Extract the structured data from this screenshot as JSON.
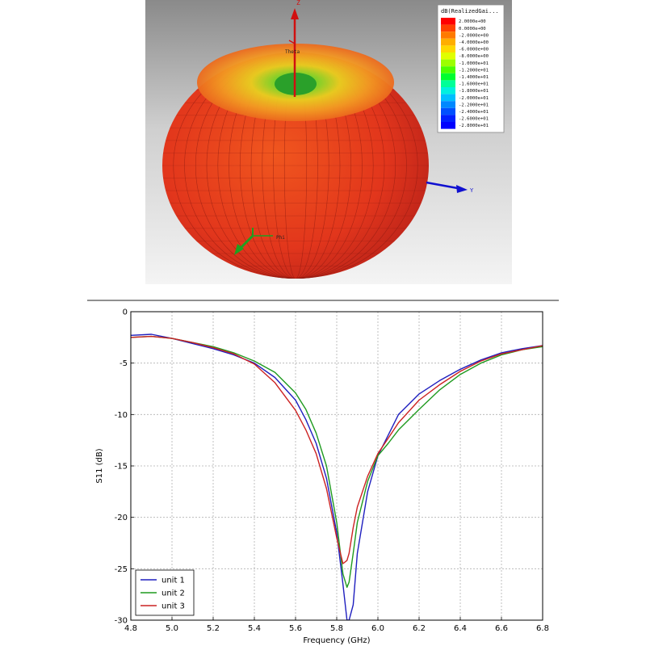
{
  "radiation_pattern": {
    "legend_title": "dB(RealizedGai...",
    "legend_values": [
      "2.0000e+00",
      "0.0000e+00",
      "-2.0000e+00",
      "-4.0000e+00",
      "-6.0000e+00",
      "-8.0000e+00",
      "-1.0000e+01",
      "-1.2000e+01",
      "-1.4000e+01",
      "-1.6000e+01",
      "-1.8000e+01",
      "-2.0000e+01",
      "-2.2000e+01",
      "-2.4000e+01",
      "-2.6000e+01",
      "-2.8000e+01"
    ],
    "legend_colors": [
      "#ff0000",
      "#ff4000",
      "#ff7a00",
      "#ffae00",
      "#ffd800",
      "#e0ff00",
      "#9cff00",
      "#4cff00",
      "#00ff30",
      "#00ff98",
      "#00f0e0",
      "#00c0ff",
      "#0088ff",
      "#0050ff",
      "#0020ff",
      "#0000ff"
    ],
    "axis_z": "Z",
    "axis_y": "Y",
    "axis_x": "",
    "label_theta": "Theta",
    "label_phi": "Phi",
    "body_color": "#e8341c",
    "top_color": "#ffa020",
    "center_color": "#40d040"
  },
  "chart_data": {
    "type": "line",
    "title": "",
    "xlabel": "Frequency (GHz)",
    "ylabel": "S11 (dB)",
    "xlim": [
      4.8,
      6.8
    ],
    "ylim": [
      -30,
      0
    ],
    "xticks": [
      "4.8",
      "5.0",
      "5.2",
      "5.4",
      "5.6",
      "5.8",
      "6.0",
      "6.2",
      "6.4",
      "6.6",
      "6.8"
    ],
    "yticks": [
      "0",
      "-5",
      "-10",
      "-15",
      "-20",
      "-25",
      "-30"
    ],
    "grid": true,
    "legend_position": "bottom-left",
    "series": [
      {
        "name": "unit 1",
        "color": "#1f1fbf",
        "x": [
          4.8,
          4.9,
          5.0,
          5.1,
          5.2,
          5.3,
          5.4,
          5.5,
          5.6,
          5.65,
          5.7,
          5.75,
          5.8,
          5.83,
          5.85,
          5.86,
          5.88,
          5.9,
          5.95,
          6.0,
          6.05,
          6.1,
          6.2,
          6.3,
          6.4,
          6.5,
          6.6,
          6.7,
          6.8
        ],
        "y": [
          -2.3,
          -2.2,
          -2.6,
          -3.1,
          -3.6,
          -4.2,
          -5.0,
          -6.4,
          -8.6,
          -10.5,
          -12.8,
          -16.2,
          -21.5,
          -26.5,
          -30.0,
          -30.0,
          -28.5,
          -23.5,
          -17.5,
          -14.0,
          -12.0,
          -10.0,
          -8.0,
          -6.7,
          -5.6,
          -4.7,
          -4.0,
          -3.6,
          -3.3
        ]
      },
      {
        "name": "unit 2",
        "color": "#1f9a1f",
        "x": [
          4.8,
          4.9,
          5.0,
          5.1,
          5.2,
          5.3,
          5.4,
          5.5,
          5.6,
          5.65,
          5.7,
          5.75,
          5.8,
          5.83,
          5.85,
          5.86,
          5.88,
          5.9,
          5.95,
          6.0,
          6.05,
          6.1,
          6.2,
          6.3,
          6.4,
          6.5,
          6.6,
          6.7,
          6.8
        ],
        "y": [
          -2.5,
          -2.4,
          -2.6,
          -3.0,
          -3.4,
          -4.0,
          -4.8,
          -5.9,
          -7.9,
          -9.5,
          -11.8,
          -15.0,
          -20.5,
          -25.5,
          -26.8,
          -26.3,
          -23.5,
          -20.5,
          -16.5,
          -14.0,
          -12.8,
          -11.5,
          -9.5,
          -7.6,
          -6.1,
          -5.0,
          -4.2,
          -3.7,
          -3.4
        ]
      },
      {
        "name": "unit 3",
        "color": "#cc2222",
        "x": [
          4.8,
          4.9,
          5.0,
          5.1,
          5.2,
          5.3,
          5.4,
          5.5,
          5.6,
          5.65,
          5.7,
          5.75,
          5.8,
          5.83,
          5.85,
          5.86,
          5.88,
          5.9,
          5.95,
          6.0,
          6.05,
          6.1,
          6.2,
          6.3,
          6.4,
          6.5,
          6.6,
          6.7,
          6.8
        ],
        "y": [
          -2.5,
          -2.4,
          -2.6,
          -3.0,
          -3.5,
          -4.1,
          -5.1,
          -6.9,
          -9.6,
          -11.5,
          -13.8,
          -17.2,
          -22.0,
          -24.5,
          -24.2,
          -23.5,
          -21.0,
          -19.0,
          -16.0,
          -13.8,
          -12.3,
          -10.8,
          -8.6,
          -7.1,
          -5.8,
          -4.8,
          -4.1,
          -3.7,
          -3.3
        ]
      }
    ]
  }
}
